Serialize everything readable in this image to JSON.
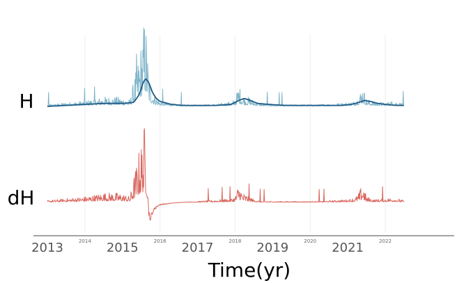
{
  "chart_data": {
    "type": "line",
    "title": "",
    "xlabel": "Time(yr)",
    "ylabel": "",
    "xlim": [
      2012.9,
      2023.0
    ],
    "x_ticks_major": [
      "2013",
      "2015",
      "2017",
      "2019",
      "2021"
    ],
    "x_ticks_minor": [
      "2014",
      "2016",
      "2018",
      "2020",
      "2022"
    ],
    "grid": "vertical-minor",
    "legend": "none",
    "rows": [
      {
        "label": "H",
        "series": [
          {
            "name": "",
            "color": "#7fb5c9",
            "style": "raw",
            "x": [
              2013.0,
              2013.3,
              2013.5,
              2013.8,
              2014.0,
              2014.3,
              2014.5,
              2014.8,
              2015.0,
              2015.2,
              2015.45,
              2015.55,
              2015.6,
              2015.65,
              2015.7,
              2015.8,
              2015.9,
              2016.0,
              2016.3,
              2016.6,
              2017.0,
              2017.3,
              2017.6,
              2017.9,
              2018.0,
              2018.1,
              2018.2,
              2018.3,
              2018.4,
              2018.5,
              2018.7,
              2019.0,
              2019.4,
              2019.8,
              2020.2,
              2020.6,
              2021.0,
              2021.2,
              2021.3,
              2021.4,
              2021.5,
              2021.7,
              2022.0,
              2022.2,
              2022.5
            ],
            "y": [
              0.02,
              0.03,
              0.04,
              0.05,
              0.06,
              0.08,
              0.1,
              0.1,
              0.09,
              0.07,
              0.55,
              0.8,
              1.0,
              0.7,
              0.35,
              0.18,
              0.1,
              0.06,
              0.03,
              0.02,
              0.02,
              0.02,
              0.03,
              0.05,
              0.08,
              0.22,
              0.12,
              0.09,
              0.1,
              0.06,
              0.03,
              0.02,
              0.02,
              0.02,
              0.02,
              0.03,
              0.04,
              0.06,
              0.12,
              0.22,
              0.08,
              0.05,
              0.04,
              0.06,
              0.03
            ]
          },
          {
            "name": "",
            "color": "#1f5a85",
            "style": "smooth",
            "x": [
              2013.0,
              2013.5,
              2014.0,
              2014.5,
              2015.0,
              2015.3,
              2015.45,
              2015.55,
              2015.62,
              2015.7,
              2015.8,
              2015.9,
              2016.0,
              2016.3,
              2016.6,
              2017.0,
              2017.5,
              2017.9,
              2018.1,
              2018.25,
              2018.4,
              2018.6,
              2018.9,
              2019.3,
              2019.8,
              2020.3,
              2020.8,
              2021.1,
              2021.3,
              2021.45,
              2021.6,
              2021.8,
              2022.0,
              2022.3,
              2022.5
            ],
            "y": [
              0.0,
              0.01,
              0.02,
              0.03,
              0.03,
              0.04,
              0.12,
              0.24,
              0.28,
              0.24,
              0.14,
              0.08,
              0.05,
              0.02,
              0.01,
              0.01,
              0.01,
              0.02,
              0.06,
              0.08,
              0.06,
              0.03,
              0.02,
              0.01,
              0.01,
              0.01,
              0.01,
              0.02,
              0.04,
              0.06,
              0.05,
              0.03,
              0.02,
              0.01,
              0.01
            ]
          }
        ]
      },
      {
        "label": "dH",
        "series": [
          {
            "name": "",
            "color": "#d9645c",
            "style": "raw",
            "x": [
              2013.0,
              2013.3,
              2013.5,
              2013.8,
              2014.0,
              2014.3,
              2014.5,
              2014.8,
              2015.0,
              2015.2,
              2015.45,
              2015.55,
              2015.6,
              2015.65,
              2015.7,
              2015.75,
              2015.8,
              2015.9,
              2016.0,
              2016.3,
              2016.6,
              2017.0,
              2017.3,
              2017.6,
              2017.9,
              2018.0,
              2018.1,
              2018.2,
              2018.3,
              2018.4,
              2018.5,
              2018.7,
              2019.0,
              2019.4,
              2019.8,
              2020.2,
              2020.6,
              2021.0,
              2021.2,
              2021.3,
              2021.4,
              2021.5,
              2021.7,
              2022.0,
              2022.2,
              2022.5
            ],
            "y": [
              0.02,
              0.03,
              0.04,
              0.05,
              0.06,
              0.08,
              0.1,
              0.1,
              0.09,
              0.06,
              0.55,
              0.7,
              0.85,
              0.4,
              -0.15,
              -0.2,
              -0.12,
              -0.06,
              -0.03,
              -0.01,
              0.0,
              0.01,
              0.02,
              0.03,
              0.04,
              0.06,
              0.2,
              0.1,
              0.08,
              0.06,
              0.03,
              0.01,
              0.01,
              0.01,
              0.01,
              0.01,
              0.02,
              0.03,
              0.05,
              0.1,
              0.2,
              0.06,
              0.03,
              0.04,
              0.05,
              0.02
            ]
          }
        ]
      }
    ]
  }
}
